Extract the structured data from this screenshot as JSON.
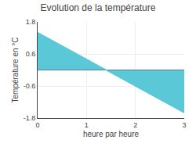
{
  "chart_data": {
    "type": "area",
    "title": "Evolution de la température",
    "x_label": "heure par heure",
    "y_label": "Température en °C",
    "x": [
      0,
      3
    ],
    "values": [
      1.4,
      -1.6
    ],
    "color": "#5bc8d8",
    "xlim": [
      0,
      3
    ],
    "ylim": [
      -1.8,
      1.8
    ],
    "xticks": [
      0,
      1,
      2,
      3
    ],
    "yticks": [
      -1.8,
      -0.6,
      0.6,
      1.8
    ],
    "grid": true
  }
}
